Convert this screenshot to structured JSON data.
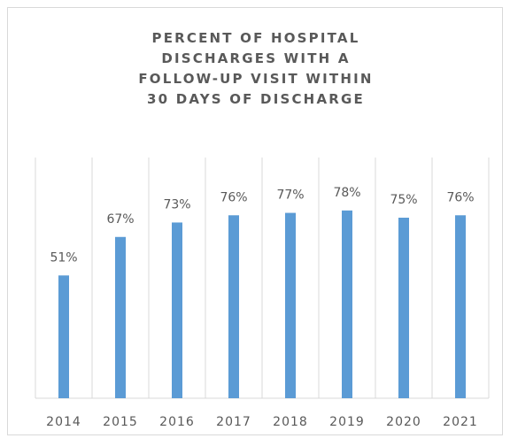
{
  "chart_data": {
    "type": "bar",
    "title": "PERCENT OF HOSPITAL DISCHARGES WITH A FOLLOW-UP VISIT WITHIN 30 DAYS OF DISCHARGE",
    "categories": [
      "2014",
      "2015",
      "2016",
      "2017",
      "2018",
      "2019",
      "2020",
      "2021"
    ],
    "values": [
      51,
      67,
      73,
      76,
      77,
      78,
      75,
      76
    ],
    "value_labels": [
      "51%",
      "67%",
      "73%",
      "76%",
      "77%",
      "78%",
      "75%",
      "76%"
    ],
    "color": "#5b9bd5",
    "ylim": [
      0,
      100
    ],
    "grid": true
  }
}
